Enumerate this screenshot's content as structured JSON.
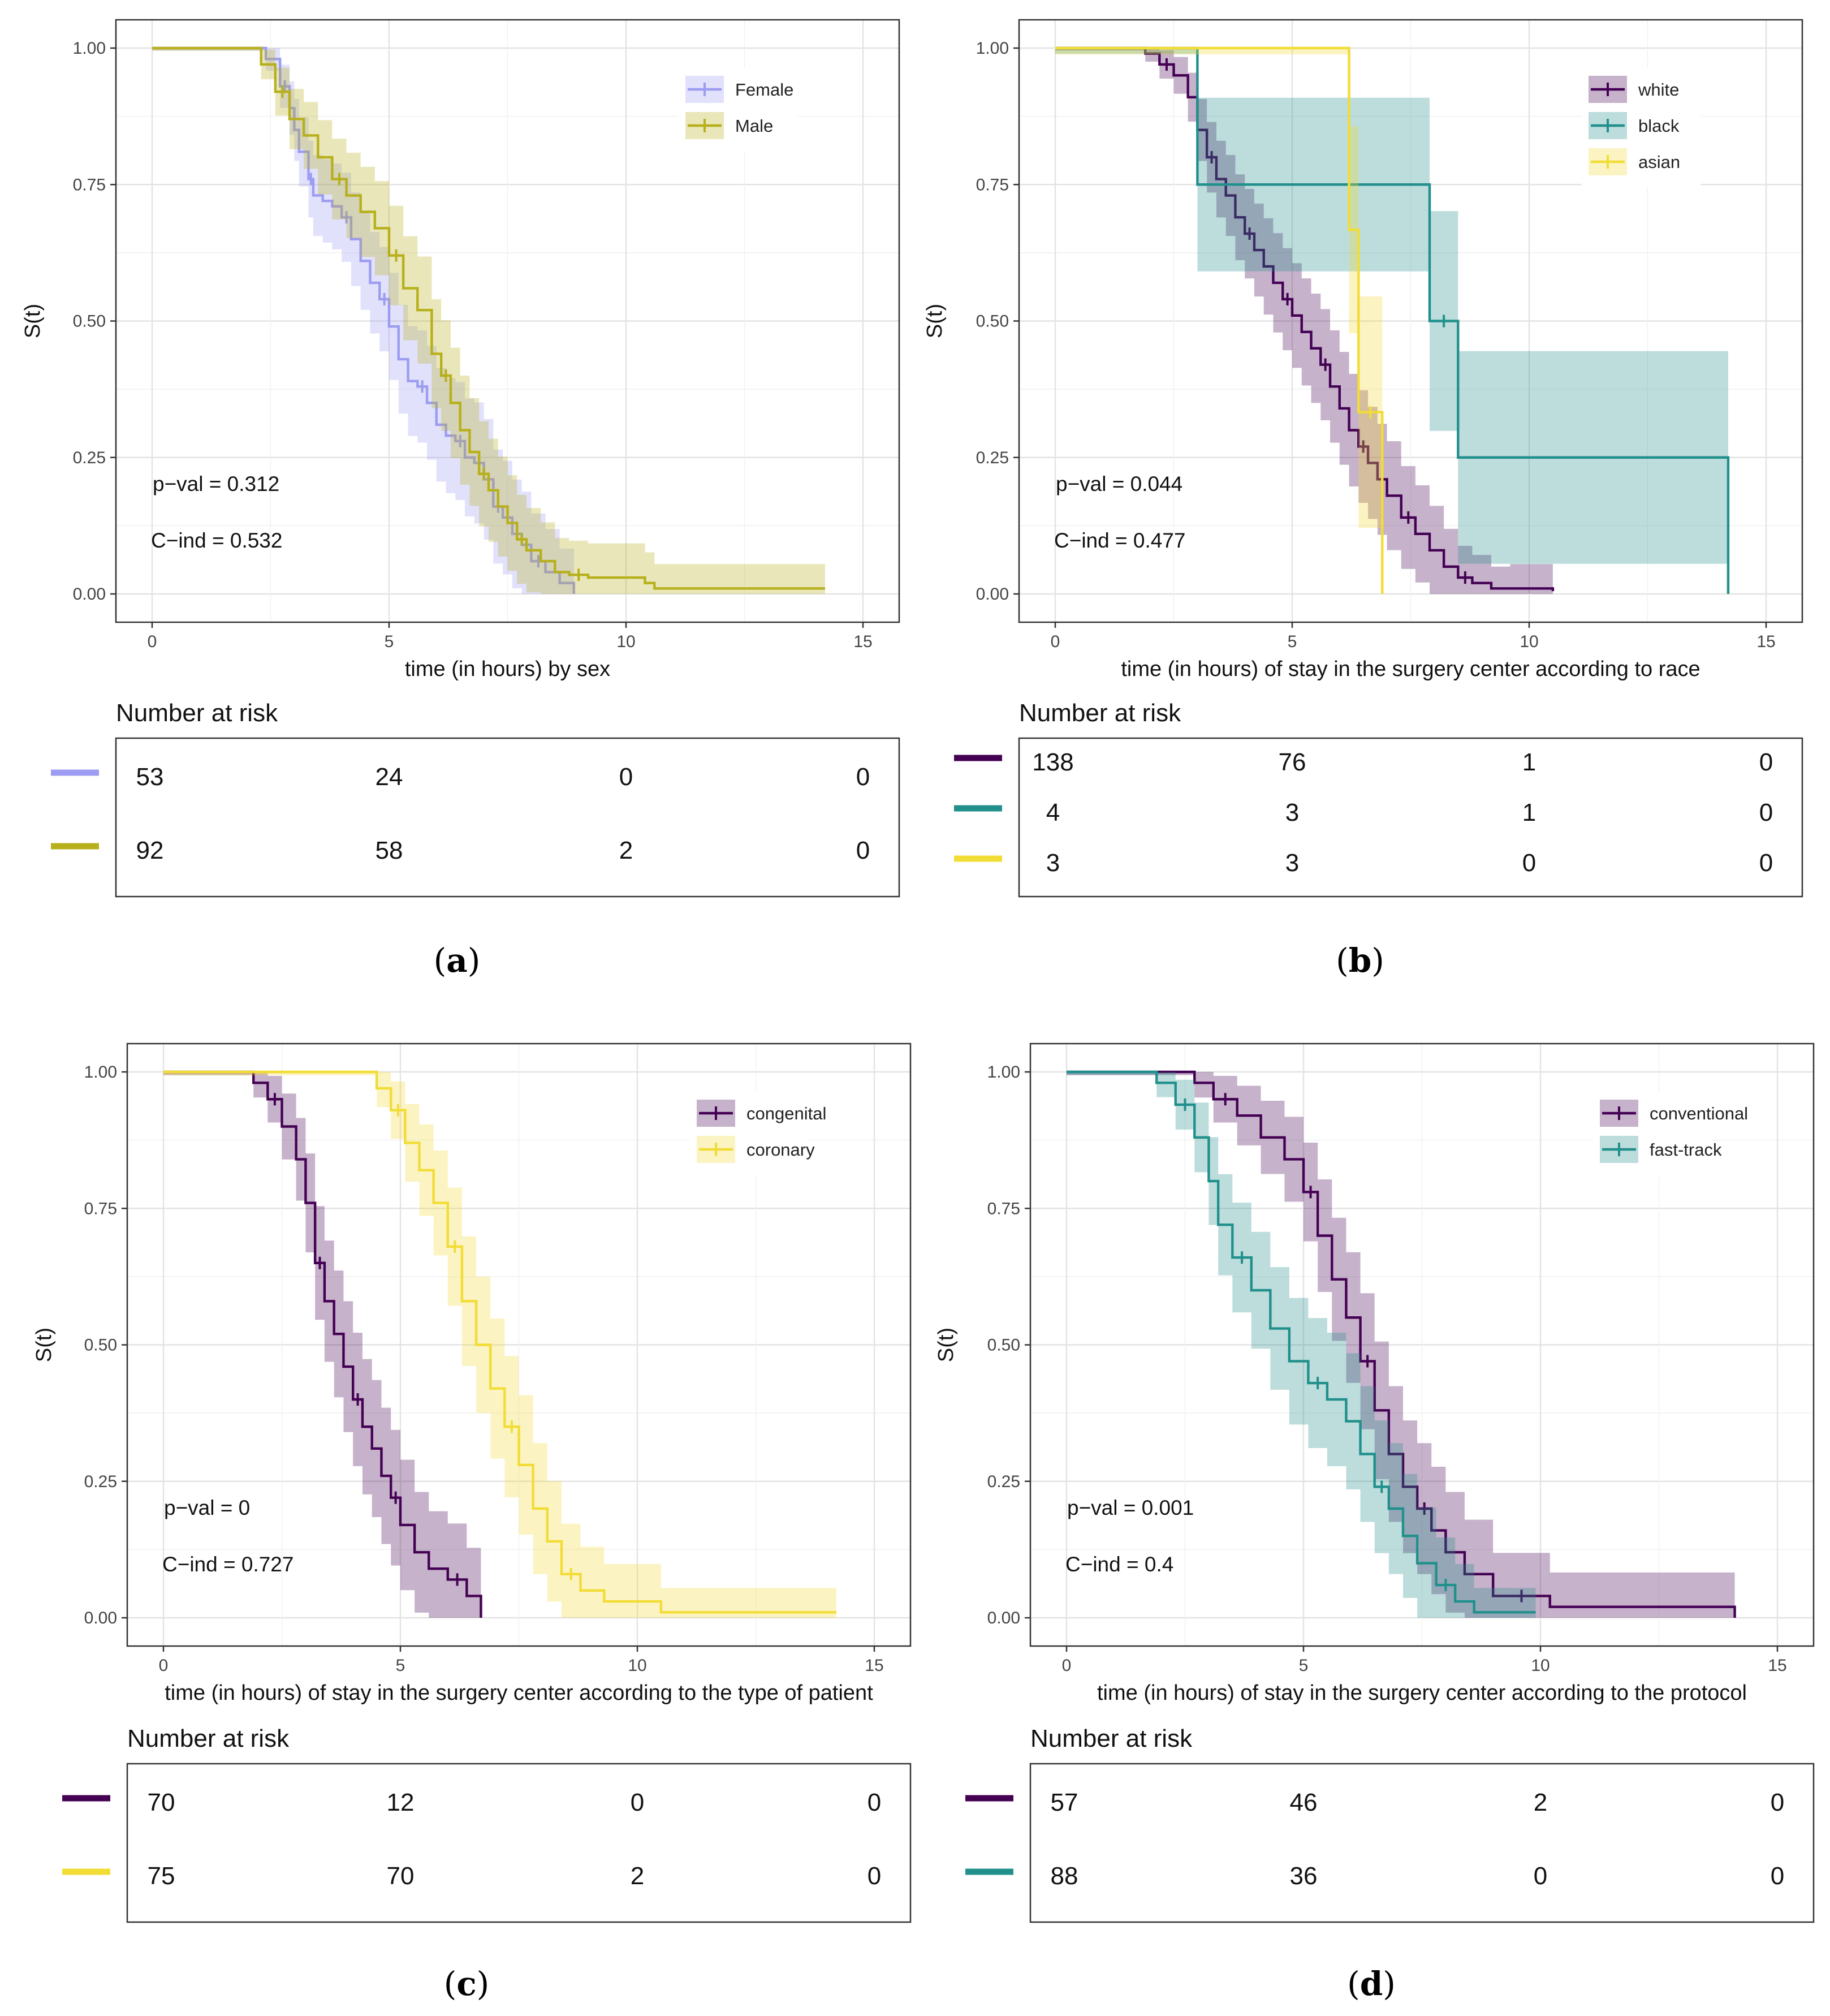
{
  "chart_data": [
    {
      "id": "a",
      "type": "line",
      "subtype": "kaplan-meier",
      "panel_label": "a",
      "xlabel": "time (in hours) by sex",
      "ylabel": "S(t)",
      "xlim": [
        0,
        15
      ],
      "ylim": [
        0,
        1
      ],
      "xticks": [
        "0",
        "5",
        "10",
        "15"
      ],
      "yticks": [
        "0.00",
        "0.25",
        "0.50",
        "0.75",
        "1.00"
      ],
      "annotations": {
        "pval_label": "p−val =",
        "pval": "0.312",
        "cind_label": "C−ind =",
        "cind": "0.532"
      },
      "legend_position": "top-right",
      "series": [
        {
          "name": "Female",
          "color": "#9c9cf2",
          "times": [
            0,
            2.4,
            2.7,
            2.9,
            3.0,
            3.1,
            3.3,
            3.4,
            3.6,
            3.8,
            4.0,
            4.2,
            4.4,
            4.6,
            4.8,
            5.0,
            5.2,
            5.4,
            5.6,
            5.8,
            6.0,
            6.2,
            6.4,
            6.6,
            6.8,
            7.0,
            7.2,
            7.4,
            7.6,
            7.8,
            8.0,
            8.3,
            8.6,
            8.9
          ],
          "surv": [
            1,
            0.98,
            0.93,
            0.89,
            0.85,
            0.81,
            0.76,
            0.73,
            0.72,
            0.71,
            0.69,
            0.65,
            0.61,
            0.57,
            0.54,
            0.49,
            0.43,
            0.39,
            0.38,
            0.35,
            0.31,
            0.29,
            0.28,
            0.25,
            0.24,
            0.21,
            0.16,
            0.14,
            0.11,
            0.09,
            0.06,
            0.04,
            0.02,
            0.0
          ],
          "risk": [
            "53",
            "24",
            "0",
            "0"
          ]
        },
        {
          "name": "Male",
          "color": "#b7b01c",
          "times": [
            0,
            2.3,
            2.6,
            2.9,
            3.2,
            3.5,
            3.8,
            4.1,
            4.4,
            4.7,
            5.0,
            5.3,
            5.6,
            5.9,
            6.1,
            6.3,
            6.5,
            6.7,
            6.9,
            7.1,
            7.3,
            7.5,
            7.7,
            7.9,
            8.2,
            8.5,
            8.8,
            9.2,
            10.4,
            10.6,
            14.2
          ],
          "surv": [
            1,
            0.97,
            0.92,
            0.87,
            0.84,
            0.8,
            0.76,
            0.73,
            0.7,
            0.67,
            0.62,
            0.56,
            0.52,
            0.44,
            0.4,
            0.35,
            0.3,
            0.26,
            0.22,
            0.19,
            0.16,
            0.13,
            0.1,
            0.08,
            0.06,
            0.04,
            0.035,
            0.03,
            0.02,
            0.01,
            0.01
          ],
          "risk": [
            "92",
            "58",
            "2",
            "0"
          ]
        }
      ],
      "risk_table_title": "Number at risk"
    },
    {
      "id": "b",
      "type": "line",
      "subtype": "kaplan-meier",
      "panel_label": "b",
      "xlabel": "time (in hours) of stay in the surgery center according to race",
      "ylabel": "S(t)",
      "xlim": [
        0,
        15
      ],
      "ylim": [
        0,
        1
      ],
      "xticks": [
        "0",
        "5",
        "10",
        "15"
      ],
      "yticks": [
        "0.00",
        "0.25",
        "0.50",
        "0.75",
        "1.00"
      ],
      "annotations": {
        "pval_label": "p−val =",
        "pval": "0.044",
        "cind_label": "C−ind =",
        "cind": "0.477"
      },
      "legend_position": "top-right",
      "series": [
        {
          "name": "white",
          "color": "#440154",
          "times": [
            0,
            1.9,
            2.2,
            2.5,
            2.8,
            3.0,
            3.2,
            3.4,
            3.6,
            3.8,
            4.0,
            4.2,
            4.4,
            4.6,
            4.8,
            5.0,
            5.2,
            5.4,
            5.6,
            5.8,
            6.0,
            6.2,
            6.4,
            6.6,
            6.8,
            7.0,
            7.3,
            7.6,
            7.9,
            8.2,
            8.5,
            8.8,
            9.2,
            9.6,
            10.5
          ],
          "surv": [
            1,
            0.99,
            0.97,
            0.95,
            0.91,
            0.85,
            0.8,
            0.76,
            0.73,
            0.69,
            0.66,
            0.63,
            0.6,
            0.57,
            0.54,
            0.51,
            0.48,
            0.45,
            0.42,
            0.38,
            0.34,
            0.3,
            0.27,
            0.24,
            0.21,
            0.18,
            0.14,
            0.11,
            0.08,
            0.05,
            0.03,
            0.02,
            0.01,
            0.01,
            0.005
          ],
          "risk": [
            "138",
            "76",
            "1",
            "0"
          ]
        },
        {
          "name": "black",
          "color": "#21908c",
          "times": [
            0,
            3.0,
            7.9,
            8.5,
            14.2
          ],
          "surv": [
            1,
            0.75,
            0.5,
            0.25,
            0.0
          ],
          "risk": [
            "4",
            "3",
            "1",
            "0"
          ]
        },
        {
          "name": "asian",
          "color": "#f2dc36",
          "times": [
            0,
            6.2,
            6.4,
            6.9
          ],
          "surv": [
            1,
            0.667,
            0.333,
            0.0
          ],
          "risk": [
            "3",
            "3",
            "0",
            "0"
          ]
        }
      ],
      "risk_table_title": "Number at risk"
    },
    {
      "id": "c",
      "type": "line",
      "subtype": "kaplan-meier",
      "panel_label": "c",
      "xlabel": "time (in hours) of stay in the surgery center according to the type of patient",
      "ylabel": "S(t)",
      "xlim": [
        0,
        15
      ],
      "ylim": [
        0,
        1
      ],
      "xticks": [
        "0",
        "5",
        "10",
        "15"
      ],
      "yticks": [
        "0.00",
        "0.25",
        "0.50",
        "0.75",
        "1.00"
      ],
      "annotations": {
        "pval_label": "p−val =",
        "pval": "0",
        "cind_label": "C−ind =",
        "cind": "0.727"
      },
      "legend_position": "top-right",
      "series": [
        {
          "name": "congenital",
          "color": "#440154",
          "times": [
            0,
            1.9,
            2.2,
            2.5,
            2.8,
            3.0,
            3.2,
            3.4,
            3.6,
            3.8,
            4.0,
            4.2,
            4.4,
            4.6,
            4.8,
            5.0,
            5.3,
            5.6,
            6.0,
            6.4,
            6.7
          ],
          "surv": [
            1,
            0.98,
            0.95,
            0.9,
            0.84,
            0.76,
            0.65,
            0.58,
            0.52,
            0.46,
            0.4,
            0.35,
            0.31,
            0.26,
            0.22,
            0.17,
            0.12,
            0.09,
            0.07,
            0.04,
            0.0
          ],
          "risk": [
            "70",
            "12",
            "0",
            "0"
          ]
        },
        {
          "name": "coronary",
          "color": "#f2dc36",
          "times": [
            0,
            4.5,
            4.8,
            5.1,
            5.4,
            5.7,
            6.0,
            6.3,
            6.6,
            6.9,
            7.2,
            7.5,
            7.8,
            8.1,
            8.4,
            8.8,
            9.3,
            10.5,
            14.2
          ],
          "surv": [
            1,
            0.97,
            0.93,
            0.87,
            0.82,
            0.76,
            0.68,
            0.58,
            0.5,
            0.42,
            0.35,
            0.28,
            0.2,
            0.14,
            0.08,
            0.05,
            0.03,
            0.01,
            0.01
          ],
          "risk": [
            "75",
            "70",
            "2",
            "0"
          ]
        }
      ],
      "risk_table_title": "Number at risk"
    },
    {
      "id": "d",
      "type": "line",
      "subtype": "kaplan-meier",
      "panel_label": "d",
      "xlabel": "time (in hours) of stay in the surgery center according to the protocol",
      "ylabel": "S(t)",
      "xlim": [
        0,
        15
      ],
      "ylim": [
        0,
        1
      ],
      "xticks": [
        "0",
        "5",
        "10",
        "15"
      ],
      "yticks": [
        "0.00",
        "0.25",
        "0.50",
        "0.75",
        "1.00"
      ],
      "annotations": {
        "pval_label": "p−val =",
        "pval": "0.001",
        "cind_label": "C−ind =",
        "cind": "0.4"
      },
      "legend_position": "top-right",
      "series": [
        {
          "name": "conventional",
          "color": "#440154",
          "times": [
            0,
            2.7,
            3.1,
            3.6,
            4.1,
            4.6,
            5.0,
            5.3,
            5.6,
            5.9,
            6.2,
            6.5,
            6.8,
            7.1,
            7.4,
            7.7,
            8.0,
            8.4,
            9.0,
            10.2,
            14.1
          ],
          "surv": [
            1,
            0.98,
            0.95,
            0.92,
            0.88,
            0.84,
            0.78,
            0.7,
            0.62,
            0.55,
            0.47,
            0.38,
            0.3,
            0.24,
            0.2,
            0.16,
            0.12,
            0.08,
            0.04,
            0.02,
            0.0
          ],
          "risk": [
            "57",
            "46",
            "2",
            "0"
          ]
        },
        {
          "name": "fast-track",
          "color": "#21908c",
          "times": [
            0,
            1.9,
            2.3,
            2.7,
            3.0,
            3.2,
            3.5,
            3.9,
            4.3,
            4.7,
            5.1,
            5.5,
            5.9,
            6.2,
            6.5,
            6.8,
            7.1,
            7.4,
            7.8,
            8.2,
            8.6,
            9.9
          ],
          "surv": [
            1,
            0.98,
            0.94,
            0.88,
            0.8,
            0.72,
            0.66,
            0.6,
            0.53,
            0.47,
            0.43,
            0.4,
            0.36,
            0.3,
            0.24,
            0.2,
            0.15,
            0.1,
            0.06,
            0.03,
            0.01,
            0.01
          ],
          "risk": [
            "88",
            "36",
            "0",
            "0"
          ]
        }
      ],
      "risk_table_title": "Number at risk"
    }
  ]
}
